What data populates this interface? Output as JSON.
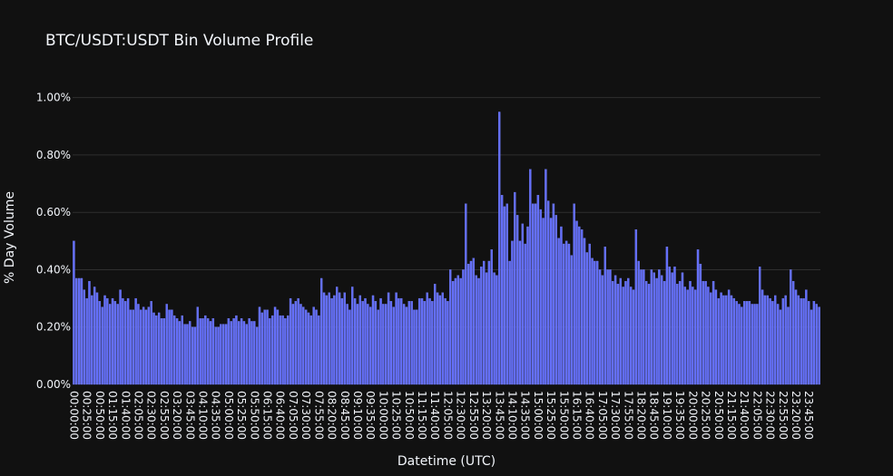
{
  "chart_data": {
    "type": "bar",
    "title": "BTC/USDT:USDT Bin Volume Profile",
    "xlabel": "Datetime (UTC)",
    "ylabel": "% Day Volume",
    "ylim": [
      0,
      1.04
    ],
    "yticks": [
      0,
      0.2,
      0.4,
      0.6,
      0.8,
      1.0
    ],
    "yticklabels": [
      "0.00%",
      "0.20%",
      "0.40%",
      "0.60%",
      "0.80%",
      "1.00%"
    ],
    "xticklabels": [
      "00:00:00",
      "00:25:00",
      "00:50:00",
      "01:15:00",
      "01:40:00",
      "02:05:00",
      "02:30:00",
      "02:55:00",
      "03:20:00",
      "03:45:00",
      "04:10:00",
      "04:35:00",
      "05:00:00",
      "05:25:00",
      "05:50:00",
      "06:15:00",
      "06:40:00",
      "07:05:00",
      "07:30:00",
      "07:55:00",
      "08:20:00",
      "08:45:00",
      "09:10:00",
      "09:35:00",
      "10:00:00",
      "10:25:00",
      "10:50:00",
      "11:15:00",
      "11:40:00",
      "12:05:00",
      "12:30:00",
      "12:55:00",
      "13:20:00",
      "13:45:00",
      "14:10:00",
      "14:35:00",
      "15:00:00",
      "15:25:00",
      "15:50:00",
      "16:15:00",
      "16:40:00",
      "17:05:00",
      "17:30:00",
      "17:55:00",
      "18:20:00",
      "18:45:00",
      "19:10:00",
      "19:35:00",
      "20:00:00",
      "20:25:00",
      "20:50:00",
      "21:15:00",
      "21:40:00",
      "22:05:00",
      "22:30:00",
      "22:55:00",
      "23:20:00",
      "23:45:00"
    ],
    "bin_minutes": 5,
    "grid": true,
    "colors": {
      "background": "#111111",
      "bar": "#636efa",
      "bar_edge": "#7b85ff",
      "grid": "#2f2f2f",
      "text": "#f2f5fa"
    },
    "values": [
      0.5,
      0.37,
      0.37,
      0.37,
      0.33,
      0.3,
      0.36,
      0.31,
      0.34,
      0.32,
      0.29,
      0.27,
      0.31,
      0.3,
      0.28,
      0.3,
      0.29,
      0.28,
      0.33,
      0.3,
      0.29,
      0.3,
      0.26,
      0.26,
      0.3,
      0.28,
      0.26,
      0.27,
      0.26,
      0.27,
      0.29,
      0.25,
      0.24,
      0.25,
      0.23,
      0.23,
      0.28,
      0.26,
      0.26,
      0.24,
      0.23,
      0.22,
      0.24,
      0.21,
      0.21,
      0.22,
      0.2,
      0.2,
      0.27,
      0.23,
      0.23,
      0.24,
      0.23,
      0.22,
      0.23,
      0.2,
      0.2,
      0.21,
      0.21,
      0.21,
      0.23,
      0.22,
      0.23,
      0.24,
      0.22,
      0.23,
      0.22,
      0.21,
      0.23,
      0.22,
      0.22,
      0.2,
      0.27,
      0.25,
      0.26,
      0.26,
      0.23,
      0.24,
      0.27,
      0.26,
      0.24,
      0.24,
      0.23,
      0.24,
      0.3,
      0.28,
      0.29,
      0.3,
      0.28,
      0.27,
      0.26,
      0.25,
      0.24,
      0.27,
      0.26,
      0.24,
      0.37,
      0.32,
      0.31,
      0.32,
      0.3,
      0.31,
      0.34,
      0.32,
      0.3,
      0.32,
      0.28,
      0.26,
      0.34,
      0.3,
      0.28,
      0.31,
      0.29,
      0.3,
      0.28,
      0.27,
      0.31,
      0.29,
      0.26,
      0.3,
      0.28,
      0.28,
      0.32,
      0.29,
      0.27,
      0.32,
      0.3,
      0.3,
      0.28,
      0.27,
      0.29,
      0.29,
      0.26,
      0.26,
      0.3,
      0.3,
      0.29,
      0.32,
      0.3,
      0.29,
      0.35,
      0.32,
      0.31,
      0.32,
      0.3,
      0.29,
      0.4,
      0.36,
      0.37,
      0.38,
      0.37,
      0.4,
      0.63,
      0.42,
      0.43,
      0.44,
      0.38,
      0.37,
      0.41,
      0.43,
      0.39,
      0.43,
      0.47,
      0.39,
      0.38,
      0.95,
      0.66,
      0.62,
      0.63,
      0.43,
      0.5,
      0.67,
      0.59,
      0.5,
      0.56,
      0.49,
      0.55,
      0.75,
      0.63,
      0.63,
      0.66,
      0.61,
      0.58,
      0.75,
      0.64,
      0.58,
      0.63,
      0.59,
      0.51,
      0.55,
      0.49,
      0.5,
      0.49,
      0.45,
      0.63,
      0.57,
      0.55,
      0.54,
      0.51,
      0.46,
      0.49,
      0.44,
      0.43,
      0.43,
      0.4,
      0.38,
      0.48,
      0.4,
      0.4,
      0.36,
      0.38,
      0.35,
      0.37,
      0.34,
      0.36,
      0.37,
      0.34,
      0.33,
      0.54,
      0.43,
      0.4,
      0.4,
      0.36,
      0.35,
      0.4,
      0.39,
      0.37,
      0.4,
      0.38,
      0.36,
      0.48,
      0.41,
      0.39,
      0.41,
      0.35,
      0.36,
      0.39,
      0.34,
      0.33,
      0.36,
      0.34,
      0.33,
      0.47,
      0.42,
      0.36,
      0.36,
      0.34,
      0.32,
      0.36,
      0.33,
      0.3,
      0.32,
      0.31,
      0.31,
      0.33,
      0.31,
      0.3,
      0.29,
      0.28,
      0.27,
      0.29,
      0.29,
      0.29,
      0.28,
      0.28,
      0.28,
      0.41,
      0.33,
      0.31,
      0.31,
      0.3,
      0.29,
      0.31,
      0.28,
      0.26,
      0.3,
      0.31,
      0.27,
      0.4,
      0.36,
      0.33,
      0.31,
      0.3,
      0.3,
      0.33,
      0.29,
      0.26,
      0.29,
      0.28,
      0.27
    ]
  }
}
